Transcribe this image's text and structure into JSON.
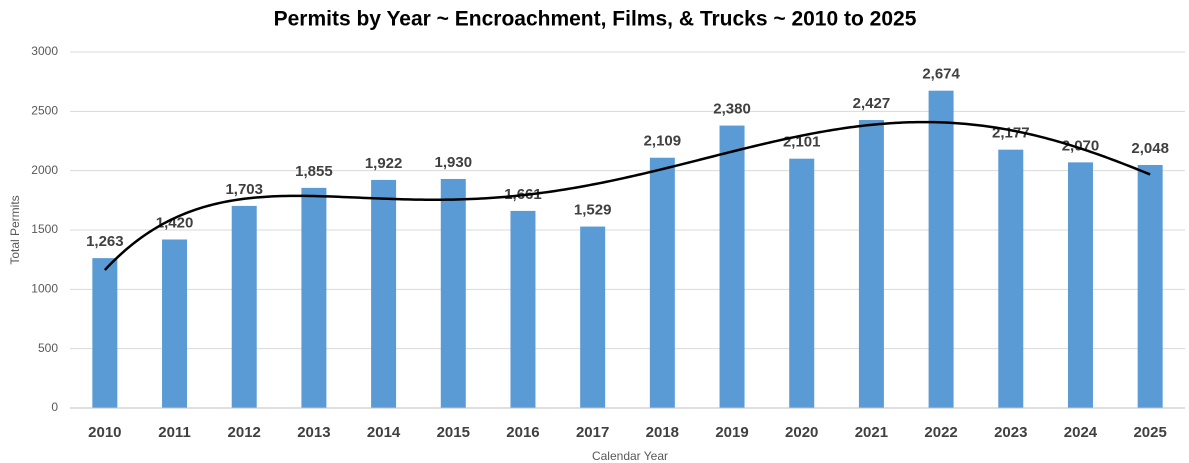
{
  "chart_data": {
    "type": "bar",
    "title": "Permits by Year ~ Encroachment, Films, & Trucks ~ 2010 to 2025",
    "x_label": "Calendar Year",
    "y_label": "Total Permits",
    "categories": [
      "2010",
      "2011",
      "2012",
      "2013",
      "2014",
      "2015",
      "2016",
      "2017",
      "2018",
      "2019",
      "2020",
      "2021",
      "2022",
      "2023",
      "2024",
      "2025"
    ],
    "values": [
      1263,
      1420,
      1703,
      1855,
      1922,
      1930,
      1661,
      1529,
      2109,
      2380,
      2101,
      2427,
      2674,
      2177,
      2070,
      2048
    ],
    "value_labels": [
      "1,263",
      "1,420",
      "1,703",
      "1,855",
      "1,922",
      "1,930",
      "1,661",
      "1,529",
      "2,109",
      "2,380",
      "2,101",
      "2,427",
      "2,674",
      "2,177",
      "2,070",
      "2,048"
    ],
    "color": "#5b9bd5",
    "ylim": [
      0,
      3000
    ],
    "yticks": [
      0,
      500,
      1000,
      1500,
      2000,
      2500,
      3000
    ],
    "grid": true,
    "trendline": {
      "type": "polynomial",
      "order": 5,
      "color": "#000000"
    }
  }
}
